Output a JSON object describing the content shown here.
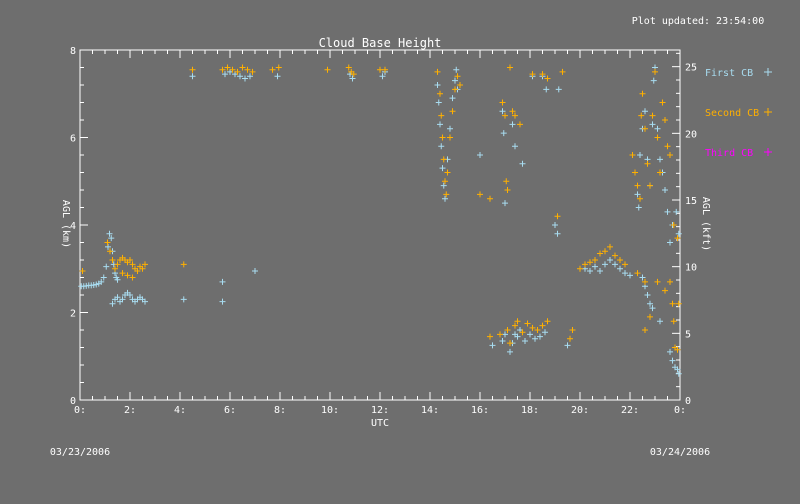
{
  "header": {
    "updated": "Plot updated: 23:54:00",
    "date_left": "03/23/2006",
    "date_right": "03/24/2006"
  },
  "chart_data": {
    "type": "scatter",
    "title": "Cloud Base Height",
    "xlabel": "UTC",
    "ylabel": "AGL (km)",
    "y2label": "AGL (kft)",
    "xlim": [
      0,
      24
    ],
    "ylim": [
      0,
      8
    ],
    "y2lim": [
      0,
      26.25
    ],
    "x_ticks": [
      "0:",
      "2:",
      "4:",
      "6:",
      "8:",
      "10:",
      "12:",
      "14:",
      "16:",
      "18:",
      "20:",
      "22:",
      "0:"
    ],
    "x_tick_values": [
      0,
      2,
      4,
      6,
      8,
      10,
      12,
      14,
      16,
      18,
      20,
      22,
      24
    ],
    "y_ticks": [
      "0",
      "2",
      "4",
      "6",
      "8"
    ],
    "y_tick_values": [
      0,
      2,
      4,
      6,
      8
    ],
    "y2_ticks": [
      "0",
      "5",
      "10",
      "15",
      "20",
      "25"
    ],
    "y2_tick_values": [
      0,
      5,
      10,
      15,
      20,
      25
    ],
    "grid": false,
    "legend_position": "right",
    "colors": {
      "background": "#6e6e6e",
      "axis": "#ffffff",
      "first": "#a8dcf0",
      "second": "#ffb000",
      "third": "#ff00ff"
    },
    "series": [
      {
        "name": "First CB",
        "marker": "+",
        "color": "#a8dcf0",
        "points": [
          [
            0.05,
            2.6
          ],
          [
            0.15,
            2.6
          ],
          [
            0.25,
            2.61
          ],
          [
            0.35,
            2.62
          ],
          [
            0.45,
            2.62
          ],
          [
            0.55,
            2.63
          ],
          [
            0.65,
            2.64
          ],
          [
            0.75,
            2.66
          ],
          [
            0.85,
            2.7
          ],
          [
            0.95,
            2.8
          ],
          [
            1.05,
            3.05
          ],
          [
            1.12,
            3.5
          ],
          [
            1.18,
            3.8
          ],
          [
            1.25,
            3.7
          ],
          [
            1.3,
            3.4
          ],
          [
            1.35,
            3.1
          ],
          [
            1.4,
            2.9
          ],
          [
            1.45,
            2.8
          ],
          [
            1.5,
            2.75
          ],
          [
            1.3,
            2.2
          ],
          [
            1.4,
            2.3
          ],
          [
            1.5,
            2.35
          ],
          [
            1.6,
            2.25
          ],
          [
            1.7,
            2.3
          ],
          [
            1.8,
            2.4
          ],
          [
            1.9,
            2.45
          ],
          [
            2.0,
            2.4
          ],
          [
            2.1,
            2.3
          ],
          [
            2.2,
            2.25
          ],
          [
            2.3,
            2.3
          ],
          [
            2.4,
            2.35
          ],
          [
            2.5,
            2.3
          ],
          [
            2.6,
            2.25
          ],
          [
            4.15,
            2.3
          ],
          [
            5.7,
            2.25
          ],
          [
            5.7,
            2.7
          ],
          [
            7.0,
            2.95
          ],
          [
            4.5,
            7.4
          ],
          [
            5.8,
            7.45
          ],
          [
            6.0,
            7.5
          ],
          [
            6.2,
            7.45
          ],
          [
            6.4,
            7.4
          ],
          [
            6.6,
            7.35
          ],
          [
            6.8,
            7.4
          ],
          [
            7.9,
            7.4
          ],
          [
            10.8,
            7.45
          ],
          [
            10.9,
            7.35
          ],
          [
            12.1,
            7.4
          ],
          [
            12.2,
            7.5
          ],
          [
            14.3,
            7.2
          ],
          [
            14.35,
            6.8
          ],
          [
            14.4,
            6.3
          ],
          [
            14.45,
            5.8
          ],
          [
            14.5,
            5.3
          ],
          [
            14.55,
            4.9
          ],
          [
            14.6,
            4.6
          ],
          [
            14.7,
            5.5
          ],
          [
            14.8,
            6.2
          ],
          [
            14.9,
            6.9
          ],
          [
            15.0,
            7.3
          ],
          [
            15.05,
            7.55
          ],
          [
            15.1,
            7.1
          ],
          [
            16.0,
            5.6
          ],
          [
            16.9,
            6.6
          ],
          [
            16.95,
            6.1
          ],
          [
            17.0,
            4.5
          ],
          [
            17.3,
            6.3
          ],
          [
            17.4,
            5.8
          ],
          [
            17.7,
            5.4
          ],
          [
            18.1,
            7.4
          ],
          [
            18.5,
            7.4
          ],
          [
            18.65,
            7.1
          ],
          [
            19.15,
            7.1
          ],
          [
            19.0,
            4.0
          ],
          [
            19.1,
            3.8
          ],
          [
            16.5,
            1.25
          ],
          [
            16.9,
            1.35
          ],
          [
            17.0,
            1.5
          ],
          [
            17.2,
            1.1
          ],
          [
            17.3,
            1.3
          ],
          [
            17.4,
            1.5
          ],
          [
            17.5,
            1.45
          ],
          [
            17.6,
            1.6
          ],
          [
            17.8,
            1.35
          ],
          [
            18.0,
            1.5
          ],
          [
            18.2,
            1.4
          ],
          [
            18.4,
            1.45
          ],
          [
            18.6,
            1.55
          ],
          [
            19.5,
            1.25
          ],
          [
            20.2,
            3.0
          ],
          [
            20.4,
            2.95
          ],
          [
            20.6,
            3.05
          ],
          [
            20.8,
            2.95
          ],
          [
            21.0,
            3.1
          ],
          [
            21.2,
            3.2
          ],
          [
            21.4,
            3.1
          ],
          [
            21.6,
            3.0
          ],
          [
            21.8,
            2.9
          ],
          [
            22.0,
            2.85
          ],
          [
            22.2,
            5.2
          ],
          [
            22.3,
            4.7
          ],
          [
            22.35,
            4.4
          ],
          [
            22.4,
            5.6
          ],
          [
            22.5,
            6.2
          ],
          [
            22.6,
            6.6
          ],
          [
            22.7,
            5.5
          ],
          [
            22.8,
            4.9
          ],
          [
            22.9,
            6.3
          ],
          [
            22.95,
            7.3
          ],
          [
            23.0,
            7.6
          ],
          [
            23.1,
            6.2
          ],
          [
            23.2,
            5.5
          ],
          [
            23.3,
            5.2
          ],
          [
            23.4,
            4.8
          ],
          [
            23.5,
            4.3
          ],
          [
            23.6,
            3.6
          ],
          [
            23.7,
            4.0
          ],
          [
            23.85,
            4.3
          ],
          [
            23.95,
            3.8
          ],
          [
            22.5,
            2.8
          ],
          [
            22.6,
            2.6
          ],
          [
            22.7,
            2.4
          ],
          [
            22.8,
            2.2
          ],
          [
            22.9,
            2.1
          ],
          [
            23.2,
            1.8
          ],
          [
            23.6,
            1.1
          ],
          [
            23.7,
            0.9
          ],
          [
            23.8,
            0.75
          ],
          [
            23.9,
            0.7
          ],
          [
            23.95,
            0.6
          ]
        ]
      },
      {
        "name": "Second CB",
        "marker": "+",
        "color": "#ffb000",
        "points": [
          [
            0.1,
            2.95
          ],
          [
            1.1,
            3.6
          ],
          [
            1.2,
            3.4
          ],
          [
            1.3,
            3.2
          ],
          [
            1.4,
            3.0
          ],
          [
            1.5,
            3.1
          ],
          [
            1.6,
            3.2
          ],
          [
            1.7,
            3.25
          ],
          [
            1.8,
            3.2
          ],
          [
            1.9,
            3.15
          ],
          [
            2.0,
            3.2
          ],
          [
            2.1,
            3.1
          ],
          [
            2.2,
            3.0
          ],
          [
            2.3,
            2.95
          ],
          [
            2.4,
            3.05
          ],
          [
            2.5,
            3.0
          ],
          [
            2.6,
            3.1
          ],
          [
            1.7,
            2.9
          ],
          [
            1.9,
            2.85
          ],
          [
            2.1,
            2.8
          ],
          [
            4.15,
            3.1
          ],
          [
            4.5,
            7.55
          ],
          [
            5.7,
            7.55
          ],
          [
            5.9,
            7.6
          ],
          [
            6.1,
            7.55
          ],
          [
            6.3,
            7.5
          ],
          [
            6.5,
            7.6
          ],
          [
            6.7,
            7.55
          ],
          [
            6.9,
            7.5
          ],
          [
            7.7,
            7.55
          ],
          [
            7.95,
            7.6
          ],
          [
            9.9,
            7.55
          ],
          [
            10.75,
            7.6
          ],
          [
            10.85,
            7.5
          ],
          [
            10.95,
            7.45
          ],
          [
            12.0,
            7.55
          ],
          [
            12.2,
            7.55
          ],
          [
            14.3,
            7.5
          ],
          [
            14.4,
            7.0
          ],
          [
            14.45,
            6.5
          ],
          [
            14.5,
            6.0
          ],
          [
            14.55,
            5.5
          ],
          [
            14.6,
            5.0
          ],
          [
            14.65,
            4.7
          ],
          [
            14.7,
            5.2
          ],
          [
            14.8,
            6.0
          ],
          [
            14.9,
            6.6
          ],
          [
            15.0,
            7.1
          ],
          [
            15.1,
            7.4
          ],
          [
            15.2,
            7.2
          ],
          [
            16.0,
            4.7
          ],
          [
            16.4,
            4.6
          ],
          [
            16.9,
            6.8
          ],
          [
            17.0,
            6.5
          ],
          [
            17.05,
            5.0
          ],
          [
            17.1,
            4.8
          ],
          [
            17.2,
            7.6
          ],
          [
            17.3,
            6.6
          ],
          [
            17.4,
            6.5
          ],
          [
            17.6,
            6.3
          ],
          [
            18.1,
            7.45
          ],
          [
            18.5,
            7.45
          ],
          [
            18.7,
            7.35
          ],
          [
            19.3,
            7.5
          ],
          [
            19.1,
            4.2
          ],
          [
            16.4,
            1.45
          ],
          [
            16.8,
            1.5
          ],
          [
            17.1,
            1.6
          ],
          [
            17.2,
            1.3
          ],
          [
            17.4,
            1.7
          ],
          [
            17.5,
            1.8
          ],
          [
            17.7,
            1.55
          ],
          [
            17.9,
            1.75
          ],
          [
            18.1,
            1.65
          ],
          [
            18.3,
            1.6
          ],
          [
            18.5,
            1.7
          ],
          [
            18.7,
            1.8
          ],
          [
            19.6,
            1.4
          ],
          [
            19.7,
            1.6
          ],
          [
            20.0,
            3.0
          ],
          [
            20.2,
            3.1
          ],
          [
            20.4,
            3.15
          ],
          [
            20.6,
            3.2
          ],
          [
            20.8,
            3.35
          ],
          [
            21.0,
            3.4
          ],
          [
            21.2,
            3.5
          ],
          [
            21.4,
            3.3
          ],
          [
            21.6,
            3.2
          ],
          [
            21.8,
            3.1
          ],
          [
            22.1,
            5.6
          ],
          [
            22.2,
            5.2
          ],
          [
            22.3,
            4.9
          ],
          [
            22.4,
            4.6
          ],
          [
            22.45,
            6.5
          ],
          [
            22.5,
            7.0
          ],
          [
            22.6,
            6.2
          ],
          [
            22.7,
            5.4
          ],
          [
            22.8,
            4.9
          ],
          [
            22.9,
            6.5
          ],
          [
            23.0,
            7.5
          ],
          [
            23.1,
            6.0
          ],
          [
            23.2,
            5.2
          ],
          [
            23.3,
            6.8
          ],
          [
            23.4,
            6.4
          ],
          [
            23.5,
            5.8
          ],
          [
            23.6,
            5.6
          ],
          [
            23.75,
            4.0
          ],
          [
            23.9,
            3.7
          ],
          [
            22.3,
            2.9
          ],
          [
            22.6,
            2.7
          ],
          [
            23.1,
            2.7
          ],
          [
            23.4,
            2.5
          ],
          [
            23.6,
            2.7
          ],
          [
            23.7,
            2.2
          ],
          [
            23.75,
            1.8
          ],
          [
            23.8,
            1.2
          ],
          [
            23.9,
            1.15
          ],
          [
            23.95,
            2.2
          ],
          [
            22.8,
            1.9
          ],
          [
            22.6,
            1.6
          ]
        ]
      },
      {
        "name": "Third CB",
        "marker": "+",
        "color": "#ff00ff",
        "points": []
      }
    ]
  }
}
